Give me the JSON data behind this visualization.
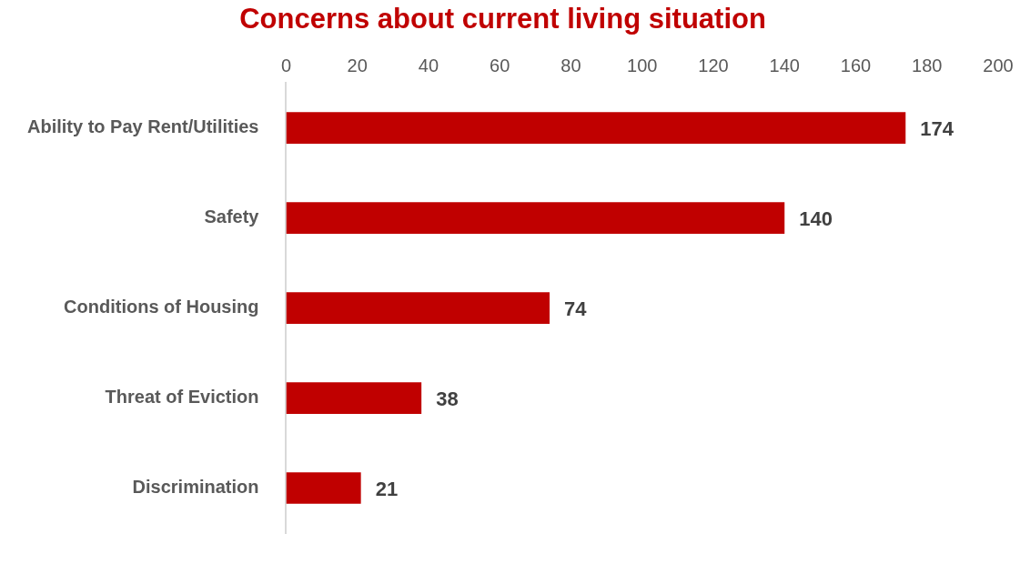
{
  "chart_data": {
    "type": "bar",
    "orientation": "horizontal",
    "title": "Concerns about current living situation",
    "categories": [
      "Ability to Pay Rent/Utilities",
      "Safety",
      "Conditions of Housing",
      "Threat of Eviction",
      "Discrimination"
    ],
    "values": [
      174,
      140,
      74,
      38,
      21
    ],
    "color": "#c00000",
    "xlim": [
      0,
      200
    ],
    "xticks": [
      0,
      20,
      40,
      60,
      80,
      100,
      120,
      140,
      160,
      180,
      200
    ],
    "grid": false,
    "legend": false,
    "data_labels": true
  }
}
